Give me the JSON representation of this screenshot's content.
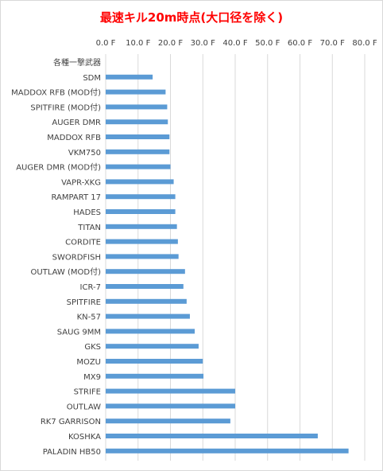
{
  "chart_data": {
    "type": "bar",
    "orientation": "horizontal",
    "title": "最速キル20m時点(大口径を除く)",
    "xlabel": "",
    "ylabel": "",
    "xlim": [
      0,
      80
    ],
    "tick_labels": [
      "0.0 F",
      "10.0 F",
      "20.0 F",
      "30.0 F",
      "40.0 F",
      "50.0 F",
      "60.0 F",
      "70.0 F",
      "80.0 F"
    ],
    "grid": true,
    "bar_color": "#5b9bd5",
    "title_color": "#ff0000",
    "categories": [
      "各種一撃武器",
      "SDM",
      "MADDOX RFB (MOD付)",
      "SPITFIRE (MOD付)",
      "AUGER DMR",
      "MADDOX RFB",
      "VKM750",
      "AUGER DMR (MOD付)",
      "VAPR-XKG",
      "RAMPART 17",
      "HADES",
      "TITAN",
      "CORDITE",
      "SWORDFISH",
      "OUTLAW (MOD付)",
      "ICR-7",
      "SPITFIRE",
      "KN-57",
      "SAUG 9MM",
      "GKS",
      "MOZU",
      "MX9",
      "STRIFE",
      "OUTLAW",
      "RK7 GARRISON",
      "KOSHKA",
      "PALADIN HB50"
    ],
    "values": [
      0,
      14.5,
      18.5,
      19.0,
      19.2,
      19.7,
      19.7,
      20.0,
      21.0,
      21.5,
      21.5,
      22.0,
      22.3,
      22.5,
      24.5,
      24.0,
      25.0,
      26.0,
      27.5,
      28.7,
      30.0,
      30.2,
      40.0,
      40.0,
      38.5,
      65.5,
      75.0
    ]
  }
}
